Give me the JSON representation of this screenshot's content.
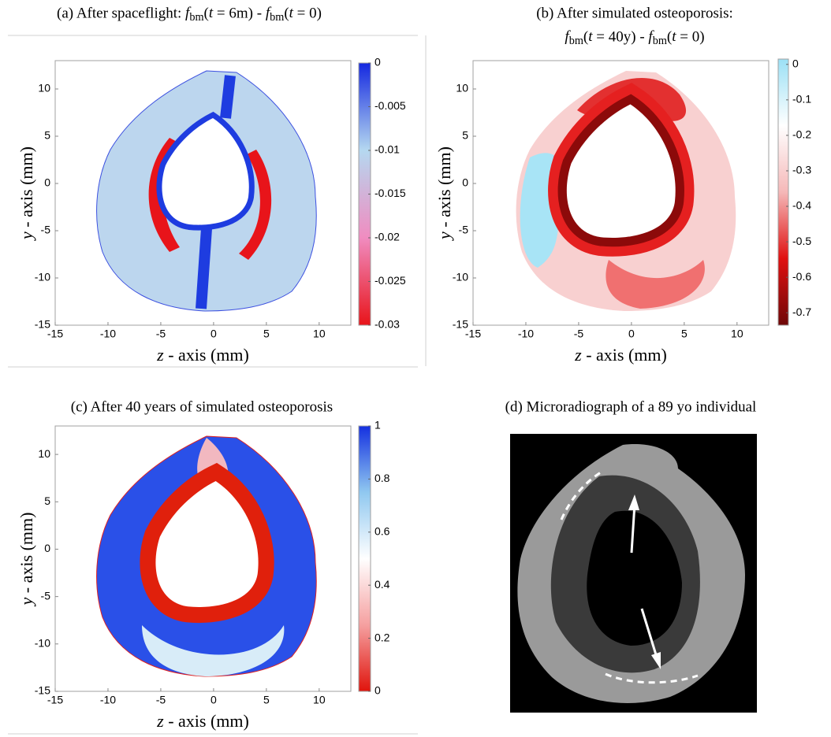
{
  "chart_data": [
    {
      "type": "heatmap",
      "title": [
        "(a) After spaceflight: fbm(t = 6m) - fbm(t = 0)"
      ],
      "x_label": "z - axis (mm)",
      "y_label": "y - axis (mm)",
      "xlim": [
        -15,
        13
      ],
      "ylim": [
        -15,
        13
      ],
      "xticks": [
        -15,
        -10,
        -5,
        0,
        5,
        10
      ],
      "yticks": [
        -15,
        -10,
        -5,
        0,
        5,
        10
      ],
      "clim": [
        -0.03,
        0
      ],
      "cticks": [
        0,
        -0.005,
        -0.01,
        -0.015,
        -0.02,
        -0.025,
        -0.03
      ],
      "colormap": [
        "#e8141a",
        "#f08cc0",
        "#b5d8f0",
        "#1428e0"
      ]
    },
    {
      "type": "heatmap",
      "title": [
        "(b) After simulated osteoporosis:",
        "fbm(t = 40y) - fbm(t = 0)"
      ],
      "x_label": "z - axis (mm)",
      "y_label": "y - axis (mm)",
      "xlim": [
        -15,
        13
      ],
      "ylim": [
        -15,
        13
      ],
      "xticks": [
        -15,
        -10,
        -5,
        0,
        5,
        10
      ],
      "yticks": [
        -15,
        -10,
        -5,
        0,
        5,
        10
      ],
      "clim": [
        -0.735,
        0.015
      ],
      "cticks": [
        0,
        -0.1,
        -0.2,
        -0.3,
        -0.4,
        -0.5,
        -0.6,
        -0.7
      ],
      "colormap": [
        "#6e0808",
        "#e01010",
        "#f5b8b8",
        "#ffffff",
        "#9be0f5"
      ]
    },
    {
      "type": "heatmap",
      "title": [
        "(c) After 40 years of simulated osteoporosis"
      ],
      "x_label": "z - axis (mm)",
      "y_label": "y - axis (mm)",
      "xlim": [
        -15,
        13
      ],
      "ylim": [
        -15,
        13
      ],
      "xticks": [
        -15,
        -10,
        -5,
        0,
        5,
        10
      ],
      "yticks": [
        -15,
        -10,
        -5,
        0,
        5,
        10
      ],
      "clim": [
        0,
        1
      ],
      "cticks": [
        0,
        0.2,
        0.4,
        0.6,
        0.8,
        1
      ],
      "colormap": [
        "#e0140c",
        "#f5a0a0",
        "#ffffff",
        "#90c8f0",
        "#1430e0"
      ]
    },
    {
      "type": "image",
      "title": [
        "(d) Microradiograph of a 89 yo individual"
      ]
    }
  ]
}
